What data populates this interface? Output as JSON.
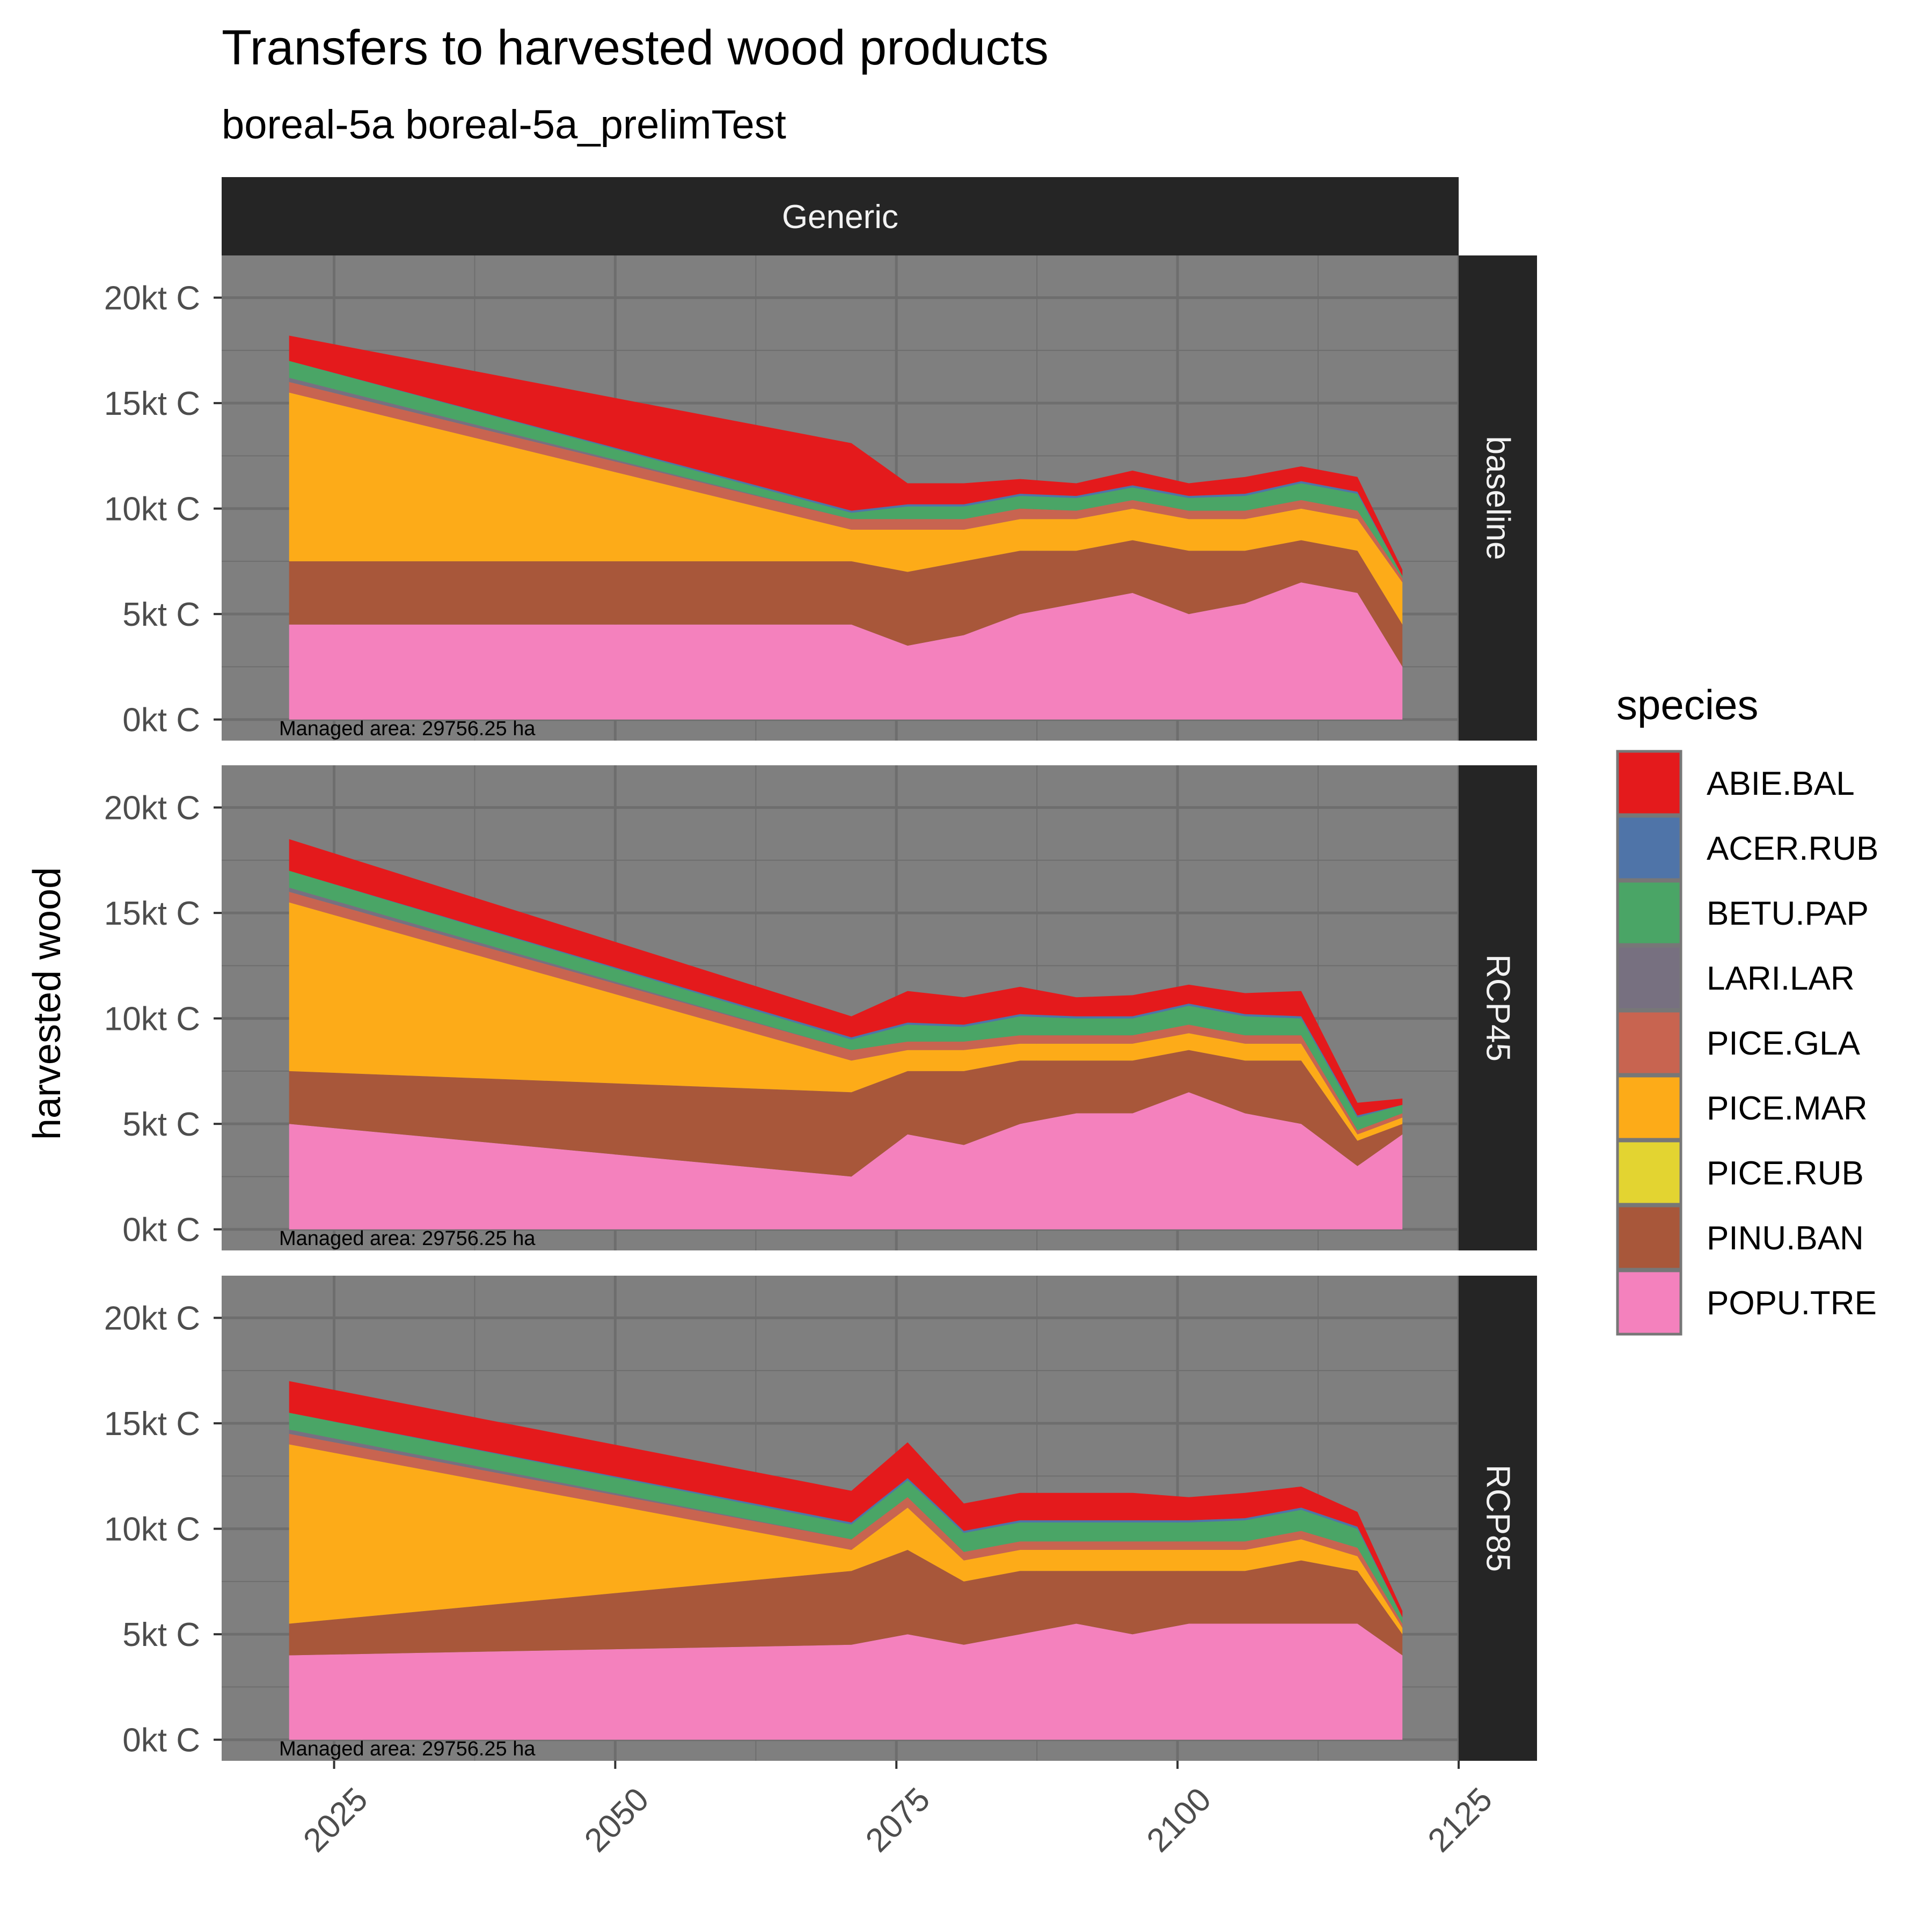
{
  "title": "Transfers to harvested wood products",
  "subtitle": "boreal-5a boreal-5a_prelimTest",
  "colors": {
    "panel_bg": "#7f7f7f",
    "grid": "#6e6e6e",
    "strip_bg": "#252525",
    "strip_text": "#f2f2f2"
  },
  "chart_data": {
    "type": "area",
    "stacked": true,
    "facet_column": "Generic",
    "ylabel": "harvested wood",
    "xlabel": "",
    "xlim": [
      2015,
      2125
    ],
    "ylim": [
      -1000,
      22000
    ],
    "x_ticks": [
      2025,
      2050,
      2075,
      2100,
      2125
    ],
    "y_ticks": [
      {
        "value": 0,
        "label": "0kt C"
      },
      {
        "value": 5000,
        "label": "5kt C"
      },
      {
        "value": 10000,
        "label": "10kt C"
      },
      {
        "value": 15000,
        "label": "15kt C"
      },
      {
        "value": 20000,
        "label": "20kt C"
      }
    ],
    "x_tick_rotation_deg": 45,
    "grid": true,
    "legend": {
      "title": "species",
      "position": "right",
      "items": [
        {
          "name": "ABIE.BAL",
          "color": "#e41a1c"
        },
        {
          "name": "ACER.RUB",
          "color": "#4f74a8"
        },
        {
          "name": "BETU.PAP",
          "color": "#4aa566"
        },
        {
          "name": "LARI.LAR",
          "color": "#777080"
        },
        {
          "name": "PICE.GLA",
          "color": "#c86450"
        },
        {
          "name": "PICE.MAR",
          "color": "#fdab18"
        },
        {
          "name": "PICE.RUB",
          "color": "#e3d431"
        },
        {
          "name": "PINU.BAN",
          "color": "#a8573a"
        },
        {
          "name": "POPU.TRE",
          "color": "#f481bd"
        }
      ]
    },
    "stack_order_bottom_to_top": [
      "POPU.TRE",
      "PINU.BAN",
      "PICE.RUB",
      "PICE.MAR",
      "PICE.GLA",
      "LARI.LAR",
      "BETU.PAP",
      "ACER.RUB",
      "ABIE.BAL"
    ],
    "panels": [
      {
        "scenario": "baseline",
        "note": "Managed area: 29756.25 ha",
        "x": [
          2021,
          2071,
          2076,
          2081,
          2086,
          2091,
          2096,
          2101,
          2106,
          2111,
          2116,
          2120
        ],
        "series": [
          {
            "name": "POPU.TRE",
            "values": [
              4500,
              4500,
              3500,
              4000,
              5000,
              5500,
              6000,
              5000,
              5500,
              6500,
              6000,
              2500
            ]
          },
          {
            "name": "PINU.BAN",
            "values": [
              3000,
              3000,
              3500,
              3500,
              3000,
              2500,
              2500,
              3000,
              2500,
              2000,
              2000,
              2000
            ]
          },
          {
            "name": "PICE.RUB",
            "values": [
              0,
              0,
              0,
              0,
              0,
              0,
              0,
              0,
              0,
              0,
              0,
              0
            ]
          },
          {
            "name": "PICE.MAR",
            "values": [
              8000,
              1500,
              2000,
              1500,
              1500,
              1500,
              1500,
              1500,
              1500,
              1500,
              1500,
              2000
            ]
          },
          {
            "name": "PICE.GLA",
            "values": [
              500,
              500,
              500,
              500,
              500,
              400,
              400,
              400,
              400,
              400,
              400,
              200
            ]
          },
          {
            "name": "LARI.LAR",
            "values": [
              200,
              0,
              0,
              0,
              0,
              0,
              0,
              0,
              0,
              0,
              0,
              0
            ]
          },
          {
            "name": "BETU.PAP",
            "values": [
              800,
              300,
              600,
              600,
              600,
              600,
              600,
              600,
              700,
              800,
              800,
              100
            ]
          },
          {
            "name": "ACER.RUB",
            "values": [
              0,
              100,
              100,
              100,
              100,
              100,
              100,
              100,
              100,
              100,
              100,
              0
            ]
          },
          {
            "name": "ABIE.BAL",
            "values": [
              1200,
              3200,
              1000,
              1000,
              700,
              600,
              700,
              600,
              800,
              700,
              700,
              300
            ]
          }
        ]
      },
      {
        "scenario": "RCP45",
        "note": "Managed area: 29756.25 ha",
        "x": [
          2021,
          2071,
          2076,
          2081,
          2086,
          2091,
          2096,
          2101,
          2106,
          2111,
          2116,
          2120
        ],
        "series": [
          {
            "name": "POPU.TRE",
            "values": [
              5000,
              2500,
              4500,
              4000,
              5000,
              5500,
              5500,
              6500,
              5500,
              5000,
              3000,
              4500
            ]
          },
          {
            "name": "PINU.BAN",
            "values": [
              2500,
              4000,
              3000,
              3500,
              3000,
              2500,
              2500,
              2000,
              2500,
              3000,
              1200,
              500
            ]
          },
          {
            "name": "PICE.RUB",
            "values": [
              0,
              0,
              0,
              0,
              0,
              0,
              0,
              0,
              0,
              0,
              0,
              0
            ]
          },
          {
            "name": "PICE.MAR",
            "values": [
              8000,
              1500,
              1000,
              1000,
              800,
              800,
              800,
              800,
              800,
              800,
              300,
              300
            ]
          },
          {
            "name": "PICE.GLA",
            "values": [
              500,
              500,
              400,
              400,
              400,
              400,
              400,
              400,
              400,
              400,
              200,
              200
            ]
          },
          {
            "name": "LARI.LAR",
            "values": [
              200,
              0,
              0,
              0,
              0,
              0,
              0,
              0,
              0,
              0,
              0,
              0
            ]
          },
          {
            "name": "BETU.PAP",
            "values": [
              800,
              500,
              800,
              700,
              900,
              800,
              800,
              900,
              900,
              800,
              600,
              400
            ]
          },
          {
            "name": "ACER.RUB",
            "values": [
              0,
              100,
              100,
              100,
              100,
              100,
              100,
              100,
              100,
              100,
              100,
              0
            ]
          },
          {
            "name": "ABIE.BAL",
            "values": [
              1500,
              1000,
              1500,
              1300,
              1300,
              900,
              1000,
              900,
              1000,
              1200,
              600,
              300
            ]
          }
        ]
      },
      {
        "scenario": "RCP85",
        "note": "Managed area: 29756.25 ha",
        "x": [
          2021,
          2071,
          2076,
          2081,
          2086,
          2091,
          2096,
          2101,
          2106,
          2111,
          2116,
          2120
        ],
        "series": [
          {
            "name": "POPU.TRE",
            "values": [
              4000,
              4500,
              5000,
              4500,
              5000,
              5500,
              5000,
              5500,
              5500,
              5500,
              5500,
              4000
            ]
          },
          {
            "name": "PINU.BAN",
            "values": [
              1500,
              3500,
              4000,
              3000,
              3000,
              2500,
              3000,
              2500,
              2500,
              3000,
              2500,
              1000
            ]
          },
          {
            "name": "PICE.RUB",
            "values": [
              0,
              0,
              0,
              0,
              0,
              0,
              0,
              0,
              0,
              0,
              0,
              0
            ]
          },
          {
            "name": "PICE.MAR",
            "values": [
              8500,
              1000,
              2000,
              1000,
              1000,
              1000,
              1000,
              1000,
              1000,
              1000,
              700,
              300
            ]
          },
          {
            "name": "PICE.GLA",
            "values": [
              500,
              500,
              500,
              400,
              400,
              400,
              400,
              400,
              400,
              400,
              400,
              200
            ]
          },
          {
            "name": "LARI.LAR",
            "values": [
              200,
              0,
              0,
              0,
              0,
              0,
              0,
              0,
              0,
              0,
              0,
              0
            ]
          },
          {
            "name": "BETU.PAP",
            "values": [
              800,
              700,
              800,
              900,
              900,
              900,
              900,
              900,
              1000,
              1000,
              900,
              300
            ]
          },
          {
            "name": "ACER.RUB",
            "values": [
              0,
              100,
              100,
              100,
              100,
              100,
              100,
              100,
              100,
              100,
              100,
              0
            ]
          },
          {
            "name": "ABIE.BAL",
            "values": [
              1500,
              1500,
              1700,
              1300,
              1300,
              1300,
              1300,
              1100,
              1200,
              1000,
              700,
              300
            ]
          }
        ]
      }
    ]
  }
}
